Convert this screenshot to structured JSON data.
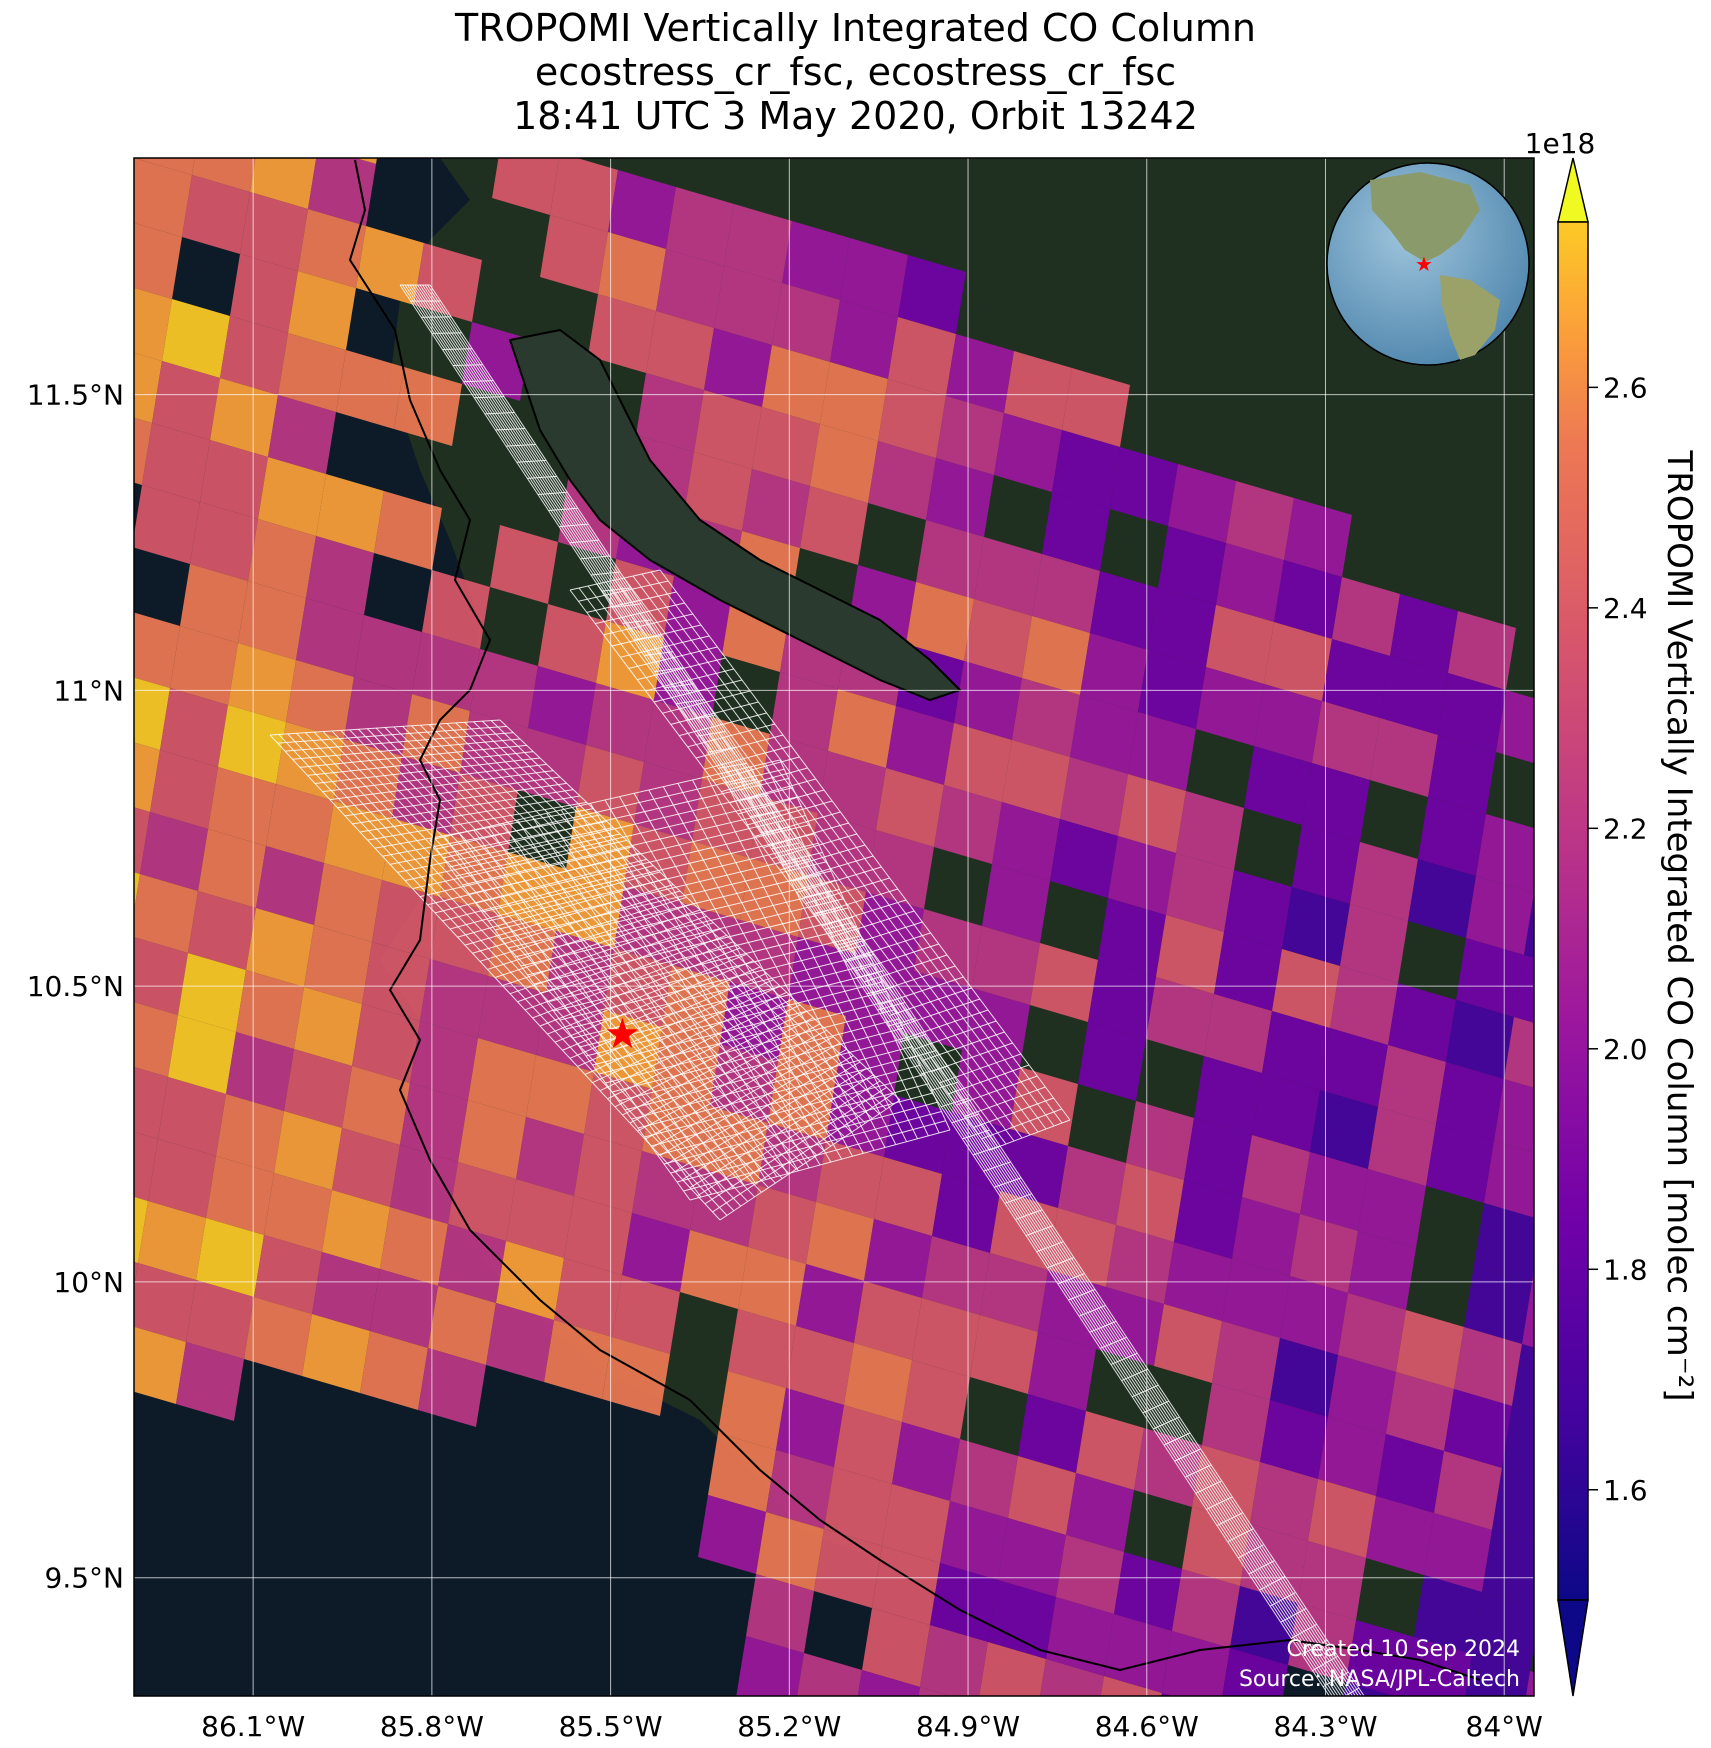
{
  "title": {
    "line1": "TROPOMI Vertically Integrated CO Column",
    "line2": "ecostress_cr_fsc, ecostress_cr_fsc",
    "line3": "18:41 UTC 3 May 2020, Orbit 13242"
  },
  "map": {
    "lon_range": [
      -86.3,
      -83.95
    ],
    "lat_range": [
      9.3,
      11.9
    ],
    "lon_ticks": [
      {
        "value": -86.1,
        "label": "86.1°W"
      },
      {
        "value": -85.8,
        "label": "85.8°W"
      },
      {
        "value": -85.5,
        "label": "85.5°W"
      },
      {
        "value": -85.2,
        "label": "85.2°W"
      },
      {
        "value": -84.9,
        "label": "84.9°W"
      },
      {
        "value": -84.6,
        "label": "84.6°W"
      },
      {
        "value": -84.3,
        "label": "84.3°W"
      },
      {
        "value": -84.0,
        "label": "84°W"
      }
    ],
    "lat_ticks": [
      {
        "value": 11.5,
        "label": "11.5°N"
      },
      {
        "value": 11.0,
        "label": "11°N"
      },
      {
        "value": 10.5,
        "label": "10.5°N"
      },
      {
        "value": 10.0,
        "label": "10°N"
      },
      {
        "value": 9.5,
        "label": "9.5°N"
      }
    ],
    "target_marker": {
      "lon": -85.48,
      "lat": 10.42,
      "color": "#ff0000"
    },
    "background_colors": {
      "ocean": "#0d1b28",
      "land": "#1f3020"
    }
  },
  "colorbar": {
    "label": "TROPOMI Vertically Integrated CO Column [molec cm⁻²]",
    "multiplier": "1e18",
    "min": 1.5,
    "max": 2.75,
    "colormap": "plasma",
    "ticks": [
      {
        "value": 1.6,
        "label": "1.6"
      },
      {
        "value": 1.8,
        "label": "1.8"
      },
      {
        "value": 2.0,
        "label": "2.0"
      },
      {
        "value": 2.2,
        "label": "2.2"
      },
      {
        "value": 2.4,
        "label": "2.4"
      },
      {
        "value": 2.6,
        "label": "2.6"
      }
    ],
    "extend": "both"
  },
  "credits": {
    "created": "Created 10 Sep 2024",
    "source": "Source: NASA/JPL-Caltech"
  }
}
